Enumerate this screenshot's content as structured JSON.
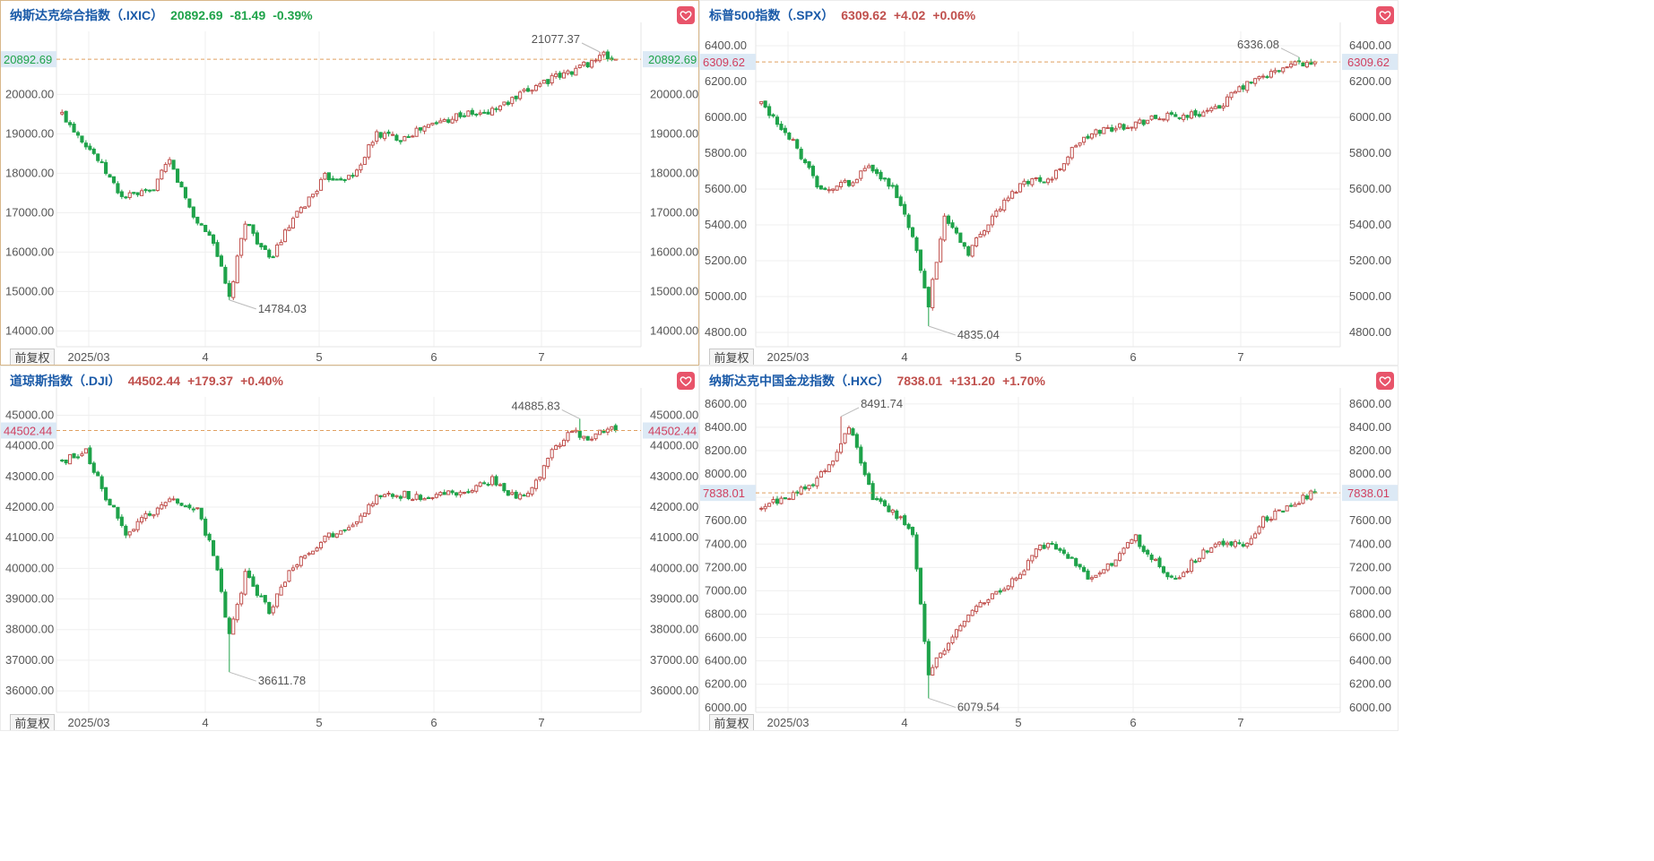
{
  "common": {
    "fq_label": "前复权",
    "heart_icon": "heart-icon",
    "dates": [
      "2025/03",
      "4",
      "5",
      "6",
      "7"
    ]
  },
  "colors": {
    "up": "#c0504d",
    "down": "#1fa34a",
    "grid": "#efefef",
    "dash": "#e0a060",
    "name": "#1a5aa8"
  },
  "charts": [
    {
      "name": "纳斯达克综合指数（.IXIC）",
      "price": "20892.69",
      "change": "-81.49",
      "pct": "-0.39%",
      "trend": "down",
      "last": 20892.69,
      "last_label": "20892.69",
      "yticks": [
        "14000.00",
        "15000.00",
        "16000.00",
        "17000.00",
        "18000.00",
        "19000.00",
        "20000.00"
      ],
      "ytick_values": [
        14000,
        15000,
        16000,
        17000,
        18000,
        19000,
        20000
      ],
      "ymin": 13600,
      "ymax": 21600,
      "high": {
        "label": "21077.37",
        "value": 21077.37,
        "index": 135
      },
      "low": {
        "label": "14784.03",
        "value": 14784.03,
        "index": 42
      },
      "chart_data": {
        "type": "candlestick",
        "x": [
          "2025/03",
          "4",
          "5",
          "6",
          "7"
        ],
        "points": [
          [
            0,
            19500
          ],
          [
            8,
            18500
          ],
          [
            15,
            17400
          ],
          [
            22,
            17500
          ],
          [
            27,
            18300
          ],
          [
            33,
            16900
          ],
          [
            38,
            16300
          ],
          [
            42,
            14800
          ],
          [
            46,
            16800
          ],
          [
            52,
            15800
          ],
          [
            58,
            16800
          ],
          [
            66,
            17900
          ],
          [
            73,
            17900
          ],
          [
            79,
            19000
          ],
          [
            85,
            18900
          ],
          [
            92,
            19200
          ],
          [
            100,
            19500
          ],
          [
            106,
            19500
          ],
          [
            114,
            19900
          ],
          [
            120,
            20300
          ],
          [
            126,
            20500
          ],
          [
            132,
            20800
          ],
          [
            136,
            20990
          ],
          [
            138,
            20892
          ]
        ]
      }
    },
    {
      "name": "标普500指数（.SPX）",
      "price": "6309.62",
      "change": "+4.02",
      "pct": "+0.06%",
      "trend": "up",
      "last": 6309.62,
      "last_label": "6309.62",
      "yticks": [
        "4800.00",
        "5000.00",
        "5200.00",
        "5400.00",
        "5600.00",
        "5800.00",
        "6000.00",
        "6200.00",
        "6400.00"
      ],
      "ytick_values": [
        4800,
        5000,
        5200,
        5400,
        5600,
        5800,
        6000,
        6200,
        6400
      ],
      "ymin": 4720,
      "ymax": 6480,
      "high": {
        "label": "6336.08",
        "value": 6336.08,
        "index": 135
      },
      "low": {
        "label": "4835.04",
        "value": 4835.04,
        "index": 42
      },
      "chart_data": {
        "type": "candlestick",
        "x": [
          "2025/03",
          "4",
          "5",
          "6",
          "7"
        ],
        "points": [
          [
            0,
            6080
          ],
          [
            8,
            5860
          ],
          [
            15,
            5580
          ],
          [
            22,
            5640
          ],
          [
            27,
            5720
          ],
          [
            33,
            5600
          ],
          [
            38,
            5350
          ],
          [
            42,
            4950
          ],
          [
            46,
            5450
          ],
          [
            52,
            5250
          ],
          [
            58,
            5450
          ],
          [
            66,
            5650
          ],
          [
            73,
            5660
          ],
          [
            79,
            5850
          ],
          [
            85,
            5930
          ],
          [
            92,
            5960
          ],
          [
            100,
            6000
          ],
          [
            106,
            6010
          ],
          [
            114,
            6040
          ],
          [
            120,
            6160
          ],
          [
            126,
            6230
          ],
          [
            132,
            6280
          ],
          [
            136,
            6300
          ],
          [
            138,
            6309
          ]
        ]
      }
    },
    {
      "name": "道琼斯指数（.DJI）",
      "price": "44502.44",
      "change": "+179.37",
      "pct": "+0.40%",
      "trend": "up",
      "last": 44502.44,
      "last_label": "44502.44",
      "yticks": [
        "36000.00",
        "37000.00",
        "38000.00",
        "39000.00",
        "40000.00",
        "41000.00",
        "42000.00",
        "43000.00",
        "44000.00",
        "45000.00"
      ],
      "ytick_values": [
        36000,
        37000,
        38000,
        39000,
        40000,
        41000,
        42000,
        43000,
        44000,
        45000
      ],
      "ymin": 35300,
      "ymax": 45600,
      "high": {
        "label": "44885.83",
        "value": 44885.83,
        "index": 130
      },
      "low": {
        "label": "36611.78",
        "value": 36611.78,
        "index": 42
      },
      "chart_data": {
        "type": "candlestick",
        "x": [
          "2025/03",
          "4",
          "5",
          "6",
          "7"
        ],
        "points": [
          [
            0,
            43500
          ],
          [
            6,
            43800
          ],
          [
            10,
            42600
          ],
          [
            16,
            41200
          ],
          [
            22,
            41800
          ],
          [
            28,
            42300
          ],
          [
            34,
            41900
          ],
          [
            38,
            40500
          ],
          [
            42,
            37800
          ],
          [
            46,
            39800
          ],
          [
            52,
            38600
          ],
          [
            58,
            40100
          ],
          [
            66,
            41000
          ],
          [
            73,
            41500
          ],
          [
            79,
            42300
          ],
          [
            86,
            42400
          ],
          [
            92,
            42300
          ],
          [
            100,
            42500
          ],
          [
            108,
            42900
          ],
          [
            114,
            42300
          ],
          [
            118,
            42600
          ],
          [
            124,
            44000
          ],
          [
            128,
            44500
          ],
          [
            132,
            44300
          ],
          [
            138,
            44502
          ]
        ]
      }
    },
    {
      "name": "纳斯达克中国金龙指数（.HXC）",
      "price": "7838.01",
      "change": "+131.20",
      "pct": "+1.70%",
      "trend": "up",
      "last": 7838.01,
      "last_label": "7838.01",
      "yticks": [
        "6000.00",
        "6200.00",
        "6400.00",
        "6600.00",
        "6800.00",
        "7000.00",
        "7200.00",
        "7400.00",
        "7600.00",
        "7800.00",
        "8000.00",
        "8200.00",
        "8400.00",
        "8600.00"
      ],
      "ytick_values": [
        6000,
        6200,
        6400,
        6600,
        6800,
        7000,
        7200,
        7400,
        7600,
        7800,
        8000,
        8200,
        8400,
        8600
      ],
      "ymin": 5960,
      "ymax": 8660,
      "high": {
        "label": "8491.74",
        "value": 8491.74,
        "index": 20
      },
      "low": {
        "label": "6079.54",
        "value": 6079.54,
        "index": 42
      },
      "chart_data": {
        "type": "candlestick",
        "x": [
          "2025/03",
          "4",
          "5",
          "6",
          "7"
        ],
        "points": [
          [
            0,
            7700
          ],
          [
            6,
            7800
          ],
          [
            12,
            7900
          ],
          [
            18,
            8100
          ],
          [
            22,
            8400
          ],
          [
            28,
            7800
          ],
          [
            34,
            7650
          ],
          [
            38,
            7500
          ],
          [
            42,
            6300
          ],
          [
            46,
            6500
          ],
          [
            52,
            6800
          ],
          [
            58,
            6950
          ],
          [
            66,
            7200
          ],
          [
            70,
            7400
          ],
          [
            76,
            7350
          ],
          [
            82,
            7100
          ],
          [
            88,
            7250
          ],
          [
            94,
            7450
          ],
          [
            100,
            7200
          ],
          [
            104,
            7100
          ],
          [
            110,
            7300
          ],
          [
            116,
            7400
          ],
          [
            122,
            7400
          ],
          [
            126,
            7600
          ],
          [
            132,
            7720
          ],
          [
            138,
            7838
          ]
        ]
      }
    }
  ]
}
